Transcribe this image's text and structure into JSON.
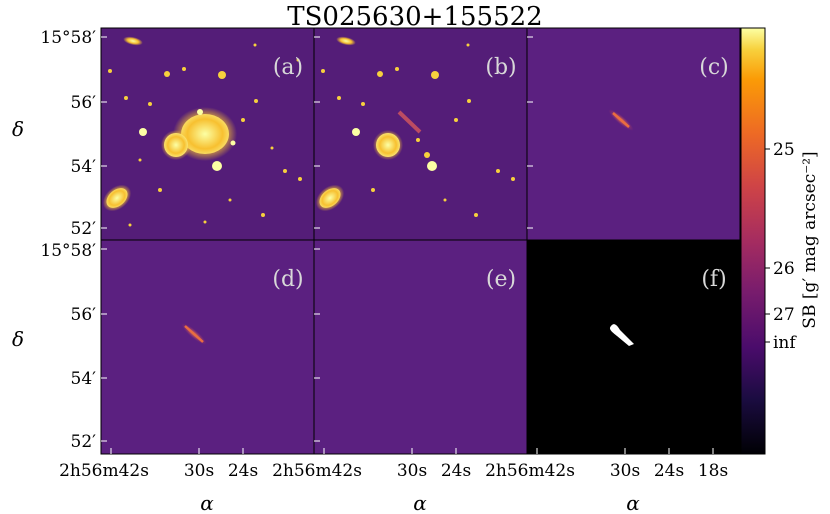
{
  "title": "TS025630+155522",
  "panels": [
    {
      "id": "a",
      "label": "(a)",
      "content": "original image"
    },
    {
      "id": "b",
      "label": "(b)",
      "content": "residual image"
    },
    {
      "id": "c",
      "label": "(c)",
      "content": "isolated trail"
    },
    {
      "id": "d",
      "label": "(d)",
      "content": "model trail"
    },
    {
      "id": "e",
      "label": "(e)",
      "content": "model residual"
    },
    {
      "id": "f",
      "label": "(f)",
      "content": "mask"
    }
  ],
  "yaxis": {
    "label": "δ",
    "ticks_top": [
      "15°58′",
      "56′",
      "54′",
      "52′"
    ],
    "ticks_bottom": [
      "15°58′",
      "56′",
      "54′",
      "52′"
    ]
  },
  "xaxis": {
    "label": "α",
    "ticks": [
      [
        "2h56m42s",
        "30s",
        "24s"
      ],
      [
        "2h56m42s",
        "30s",
        "24s"
      ],
      [
        "2h56m42s",
        "30s",
        "24s",
        "18s"
      ]
    ]
  },
  "colorbar": {
    "label": "SB [g′ mag arcsec⁻²]",
    "ticks": [
      "25",
      "26",
      "27",
      "inf"
    ],
    "colormap": "inferno"
  },
  "colors": {
    "background_panel": "#5a1f7a",
    "mask_bg": "#000000",
    "mask_fg": "#ffffff",
    "bright": "#fcffa4"
  }
}
